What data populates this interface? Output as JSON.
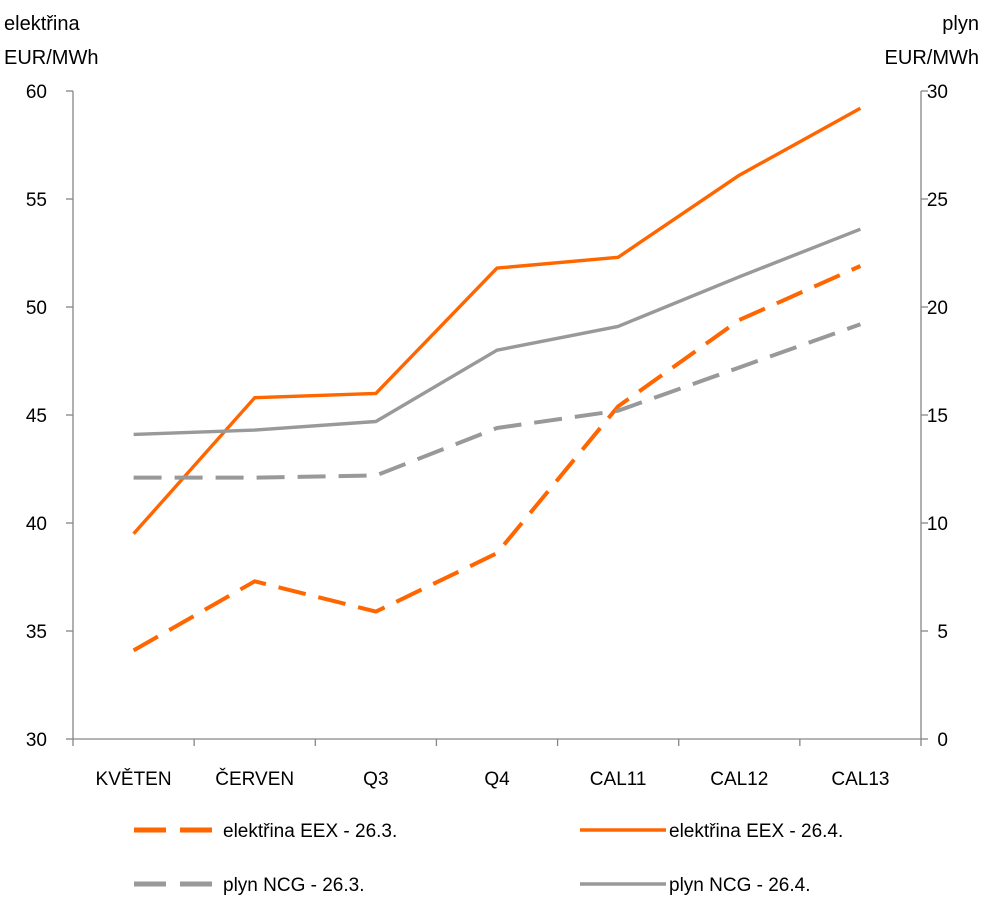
{
  "chart_data": {
    "type": "line",
    "categories": [
      "KVĚTEN",
      "ČERVEN",
      "Q3",
      "Q4",
      "CAL11",
      "CAL12",
      "CAL13"
    ],
    "y_left": {
      "label_line1": "elektřina",
      "label_line2": "EUR/MWh",
      "ylim": [
        30,
        60
      ],
      "ticks": [
        30,
        35,
        40,
        45,
        50,
        55,
        60
      ]
    },
    "y_right": {
      "label_line1": "plyn",
      "label_line2": "EUR/MWh",
      "ylim": [
        0,
        30
      ],
      "ticks": [
        0,
        5,
        10,
        15,
        20,
        25,
        30
      ]
    },
    "series": [
      {
        "name": "elektřina EEX - 26.3.",
        "axis": "left",
        "color": "#FF6600",
        "dash": true,
        "values": [
          34.1,
          37.3,
          35.9,
          38.6,
          45.4,
          49.4,
          51.9
        ]
      },
      {
        "name": "elektřina EEX - 26.4.",
        "axis": "left",
        "color": "#FF6600",
        "dash": false,
        "values": [
          39.5,
          45.8,
          46.0,
          51.8,
          52.3,
          56.1,
          59.2
        ]
      },
      {
        "name": "plyn NCG - 26.3.",
        "axis": "right",
        "color": "#999999",
        "dash": true,
        "values": [
          12.1,
          12.1,
          12.2,
          14.4,
          15.2,
          17.2,
          19.2
        ]
      },
      {
        "name": "plyn NCG - 26.4.",
        "axis": "right",
        "color": "#999999",
        "dash": false,
        "values": [
          14.1,
          14.3,
          14.7,
          18.0,
          19.1,
          21.4,
          23.6
        ]
      }
    ],
    "grid": false,
    "legend_position": "bottom"
  }
}
